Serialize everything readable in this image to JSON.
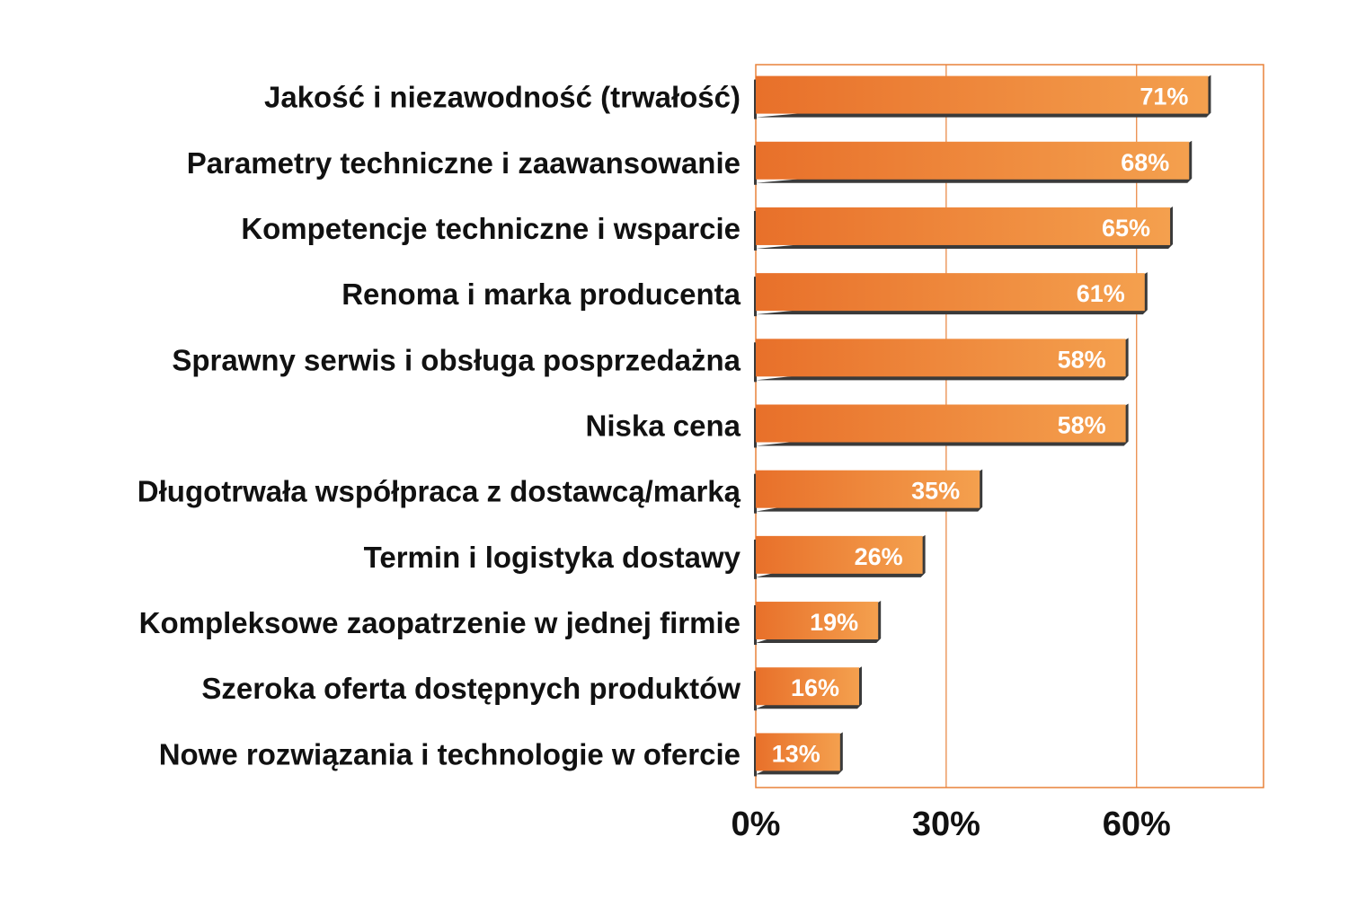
{
  "chart_data": {
    "type": "bar",
    "orientation": "horizontal",
    "categories": [
      "Jakość i niezawodność (trwałość)",
      "Parametry techniczne i zaawansowanie",
      "Kompetencje techniczne i wsparcie",
      "Renoma i marka producenta",
      "Sprawny serwis i obsługa posprzedażna",
      "Niska cena",
      "Długotrwała współpraca z dostawcą/marką",
      "Termin i logistyka dostawy",
      "Kompleksowe zaopatrzenie w jednej firmie",
      "Szeroka oferta dostępnych produktów",
      "Nowe rozwiązania i technologie w ofercie"
    ],
    "values": [
      71,
      68,
      65,
      61,
      58,
      58,
      35,
      26,
      19,
      16,
      13
    ],
    "value_labels": [
      "71%",
      "68%",
      "65%",
      "61%",
      "58%",
      "58%",
      "35%",
      "26%",
      "19%",
      "16%",
      "13%"
    ],
    "xlim": [
      0,
      80
    ],
    "xticks": [
      0,
      30,
      60
    ],
    "xtick_labels": [
      "0%",
      "30%",
      "60%"
    ],
    "grid": true,
    "legend": "none",
    "colors": {
      "bar_light": "#f4a04e",
      "bar_dark": "#e8702a",
      "bar_shadow": "#3a3a3a",
      "frame": "#e8823a",
      "label_text": "#111111",
      "value_text": "#ffffff"
    }
  }
}
